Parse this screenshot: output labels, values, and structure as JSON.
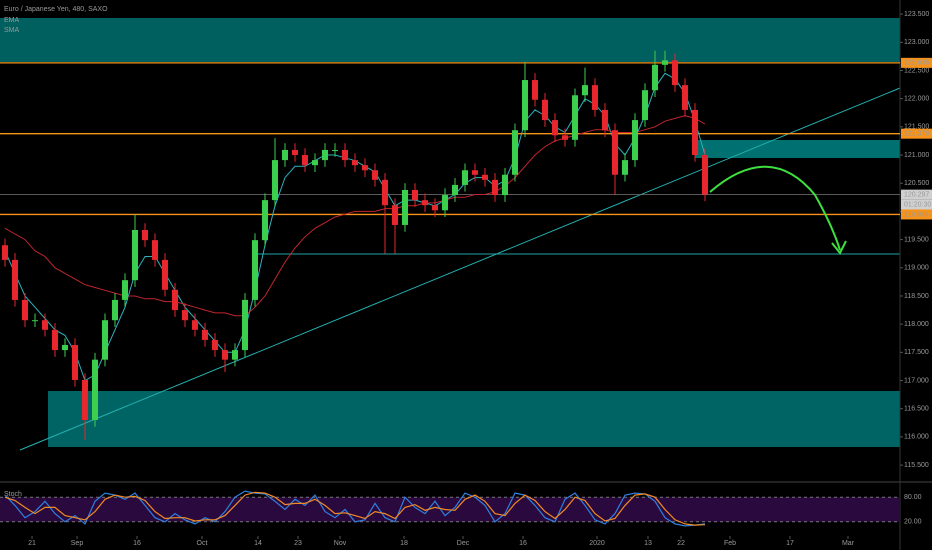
{
  "chart_data": {
    "type": "candlestick",
    "title": "Euro / Japanese Yen, 480, SAXO",
    "up_color": "#3ccf4e",
    "down_color": "#e8262e",
    "xlim": [
      -0.5,
      89.5
    ],
    "xticks": [
      {
        "value": 2.7,
        "label": "21"
      },
      {
        "value": 7.2,
        "label": "Sep"
      },
      {
        "value": 13.2,
        "label": "16"
      },
      {
        "value": 19.7,
        "label": "Oct"
      },
      {
        "value": 25.3,
        "label": "14"
      },
      {
        "value": 29.3,
        "label": "23"
      },
      {
        "value": 33.5,
        "label": "Nov"
      },
      {
        "value": 39.9,
        "label": "18"
      },
      {
        "value": 45.8,
        "label": "Dec"
      },
      {
        "value": 51.8,
        "label": "16"
      },
      {
        "value": 59.2,
        "label": "2020"
      },
      {
        "value": 64.3,
        "label": "13"
      },
      {
        "value": 67.6,
        "label": "22"
      },
      {
        "value": 72.5,
        "label": "Feb"
      },
      {
        "value": 78.5,
        "label": "17"
      },
      {
        "value": 84.3,
        "label": "Mar"
      }
    ],
    "ylim": [
      115.2,
      123.75
    ],
    "yticks": [
      {
        "value": 115.5,
        "label": "115.500"
      },
      {
        "value": 116,
        "label": "116.000"
      },
      {
        "value": 116.5,
        "label": "116.500"
      },
      {
        "value": 117,
        "label": "117.000"
      },
      {
        "value": 117.5,
        "label": "117.500"
      },
      {
        "value": 118,
        "label": "118.000"
      },
      {
        "value": 118.5,
        "label": "118.500"
      },
      {
        "value": 119,
        "label": "119.000"
      },
      {
        "value": 119.5,
        "label": "119.500"
      },
      {
        "value": 120,
        "label": "120.000"
      },
      {
        "value": 120.5,
        "label": "120.500"
      },
      {
        "value": 121,
        "label": "121.000"
      },
      {
        "value": 121.5,
        "label": "121.500"
      },
      {
        "value": 122,
        "label": "122.000"
      },
      {
        "value": 122.5,
        "label": "122.500"
      },
      {
        "value": 123,
        "label": "123.000"
      },
      {
        "value": 123.5,
        "label": "123.500"
      }
    ],
    "open": [
      119.4,
      119.14,
      118.43,
      118.07,
      118.07,
      117.9,
      117.54,
      117.63,
      117.01,
      116.3,
      117.37,
      118.07,
      118.43,
      118.78,
      119.67,
      119.49,
      119.14,
      118.61,
      118.25,
      118.07,
      117.9,
      117.72,
      117.54,
      117.37,
      117.54,
      118.43,
      119.49,
      120.2,
      120.91,
      121.09,
      121.0,
      120.82,
      120.91,
      121.09,
      121.09,
      120.91,
      120.82,
      120.73,
      120.56,
      120.11,
      119.76,
      120.38,
      120.2,
      120.11,
      120.02,
      120.29,
      120.47,
      120.73,
      120.65,
      120.56,
      120.29,
      120.65,
      121.44,
      122.33,
      121.98,
      121.62,
      121.35,
      121.27,
      122.06,
      122.24,
      121.8,
      121.44,
      120.65,
      120.91,
      121.62,
      122.15,
      122.6,
      122.68,
      122.24,
      121.8,
      121.0
    ],
    "high": [
      119.52,
      119.26,
      118.55,
      118.19,
      118.19,
      118.02,
      117.75,
      117.75,
      117.13,
      117.49,
      118.19,
      118.55,
      118.9,
      119.95,
      119.79,
      119.61,
      119.26,
      118.73,
      118.37,
      118.19,
      118.02,
      117.84,
      117.66,
      117.66,
      118.55,
      119.61,
      120.32,
      121.3,
      121.21,
      121.21,
      121.12,
      121.03,
      121.21,
      121.21,
      121.21,
      121.03,
      120.94,
      120.85,
      120.68,
      120.23,
      120.5,
      120.5,
      120.32,
      120.23,
      120.41,
      120.59,
      120.85,
      120.85,
      120.77,
      120.68,
      120.77,
      121.56,
      122.65,
      122.45,
      122.1,
      121.74,
      121.47,
      122.18,
      122.55,
      122.36,
      121.92,
      121.56,
      121.03,
      121.74,
      122.27,
      122.85,
      122.85,
      122.8,
      122.36,
      121.92,
      121.12
    ],
    "low": [
      119.02,
      118.31,
      117.95,
      117.95,
      117.78,
      117.42,
      117.42,
      116.89,
      115.95,
      116.18,
      117.25,
      117.95,
      118.31,
      118.66,
      119.37,
      119.02,
      118.49,
      118.13,
      117.95,
      117.78,
      117.6,
      117.42,
      117.15,
      117.25,
      117.42,
      118.31,
      119.37,
      120.08,
      120.79,
      120.88,
      120.7,
      120.7,
      120.79,
      120.97,
      120.79,
      120.7,
      120.61,
      120.44,
      119.25,
      119.25,
      119.64,
      120.08,
      119.99,
      119.9,
      119.9,
      120.17,
      120.35,
      120.53,
      120.44,
      120.17,
      120.17,
      120.53,
      121.32,
      121.86,
      121.5,
      121.23,
      121.15,
      121.15,
      121.94,
      121.68,
      121.32,
      120.3,
      120.53,
      120.79,
      121.5,
      122.03,
      122.48,
      122.12,
      121.68,
      120.88,
      120.18
    ],
    "close": [
      119.14,
      118.43,
      118.07,
      118.07,
      117.9,
      117.54,
      117.63,
      117.01,
      116.3,
      117.37,
      118.07,
      118.43,
      118.78,
      119.67,
      119.49,
      119.14,
      118.61,
      118.25,
      118.07,
      117.9,
      117.72,
      117.54,
      117.37,
      117.54,
      118.43,
      119.49,
      120.2,
      120.91,
      121.09,
      121.0,
      120.82,
      120.91,
      121.09,
      121.09,
      120.91,
      120.82,
      120.73,
      120.56,
      120.11,
      119.76,
      120.38,
      120.2,
      120.11,
      120.02,
      120.29,
      120.47,
      120.73,
      120.65,
      120.56,
      120.29,
      120.65,
      121.44,
      122.33,
      121.98,
      121.62,
      121.35,
      121.27,
      122.06,
      122.24,
      121.8,
      121.44,
      120.65,
      120.91,
      121.62,
      122.15,
      122.6,
      122.68,
      122.24,
      121.8,
      121.0,
      120.3
    ],
    "series": [
      {
        "name": "EMA",
        "color": "#2bb3c0",
        "values": [
          119.3,
          118.9,
          118.5,
          118.3,
          118.1,
          117.9,
          117.8,
          117.5,
          117.0,
          117.1,
          117.5,
          117.9,
          118.3,
          118.9,
          119.2,
          119.2,
          118.9,
          118.6,
          118.3,
          118.1,
          117.9,
          117.7,
          117.5,
          117.5,
          117.9,
          118.6,
          119.4,
          120.1,
          120.6,
          120.8,
          120.8,
          120.9,
          121.0,
          121.0,
          120.95,
          120.9,
          120.8,
          120.7,
          120.4,
          120.1,
          120.2,
          120.2,
          120.15,
          120.1,
          120.2,
          120.3,
          120.5,
          120.6,
          120.6,
          120.45,
          120.55,
          120.95,
          121.6,
          121.8,
          121.7,
          121.5,
          121.4,
          121.7,
          122.0,
          121.9,
          121.7,
          121.2,
          121.0,
          121.3,
          121.7,
          122.2,
          122.45,
          122.35,
          122.1,
          121.6,
          121.0
        ]
      },
      {
        "name": "SMA",
        "color": "#c0262d",
        "values": [
          119.7,
          119.6,
          119.5,
          119.3,
          119.2,
          119.0,
          118.9,
          118.8,
          118.7,
          118.65,
          118.6,
          118.55,
          118.5,
          118.5,
          118.45,
          118.45,
          118.4,
          118.4,
          118.35,
          118.3,
          118.25,
          118.2,
          118.2,
          118.15,
          118.15,
          118.3,
          118.5,
          118.8,
          119.1,
          119.35,
          119.55,
          119.7,
          119.8,
          119.9,
          119.95,
          120.0,
          120.0,
          120.0,
          120.05,
          120.05,
          120.1,
          120.1,
          120.15,
          120.15,
          120.2,
          120.25,
          120.25,
          120.3,
          120.3,
          120.35,
          120.45,
          120.6,
          120.8,
          121.0,
          121.15,
          121.25,
          121.3,
          121.35,
          121.4,
          121.45,
          121.45,
          121.4,
          121.4,
          121.4,
          121.45,
          121.5,
          121.6,
          121.65,
          121.7,
          121.65,
          121.55
        ]
      }
    ],
    "levels": [
      {
        "value": 122.635,
        "label": "122.635",
        "color": "#f7931a"
      },
      {
        "value": 121.379,
        "label": "121.379",
        "color": "#f7931a"
      },
      {
        "value": 120.297,
        "label": "120.297",
        "color": "#777777"
      },
      {
        "value": 119.946,
        "label": "119.946",
        "color": "#f7931a"
      }
    ],
    "countdown": "01:20:30",
    "stoch": {
      "title": "Stoch",
      "ylim": [
        0,
        100
      ],
      "yticks": [
        {
          "value": 20,
          "label": "20.00"
        },
        {
          "value": 80,
          "label": "80.00"
        }
      ],
      "lines": [
        {
          "color": "#2f7fe0",
          "values": [
            85,
            60,
            30,
            45,
            70,
            40,
            20,
            35,
            15,
            70,
            90,
            85,
            75,
            90,
            60,
            30,
            20,
            40,
            25,
            15,
            30,
            20,
            45,
            80,
            95,
            90,
            88,
            70,
            50,
            75,
            60,
            85,
            45,
            30,
            50,
            20,
            25,
            65,
            30,
            20,
            80,
            55,
            40,
            70,
            35,
            55,
            90,
            80,
            60,
            20,
            40,
            90,
            85,
            60,
            30,
            20,
            75,
            90,
            60,
            25,
            15,
            40,
            85,
            90,
            88,
            70,
            30,
            15,
            10,
            12,
            15
          ]
        },
        {
          "color": "#f08a24",
          "values": [
            80,
            72,
            55,
            40,
            55,
            55,
            35,
            30,
            25,
            45,
            75,
            85,
            80,
            82,
            72,
            45,
            28,
            30,
            30,
            22,
            25,
            25,
            35,
            60,
            85,
            92,
            90,
            80,
            62,
            65,
            65,
            75,
            60,
            40,
            42,
            35,
            28,
            45,
            40,
            28,
            55,
            62,
            48,
            55,
            50,
            48,
            75,
            85,
            70,
            40,
            35,
            65,
            85,
            72,
            45,
            28,
            50,
            80,
            72,
            40,
            22,
            28,
            60,
            85,
            88,
            80,
            50,
            25,
            15,
            12,
            13
          ]
        }
      ]
    }
  }
}
